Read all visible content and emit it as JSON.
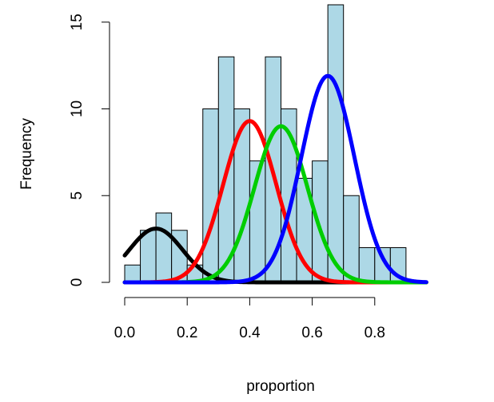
{
  "chart_data": {
    "type": "bar",
    "subtype": "histogram",
    "xlabel": "proportion",
    "ylabel": "Frequency",
    "xlim": [
      0.0,
      0.95
    ],
    "ylim": [
      0,
      16
    ],
    "x_ticks": [
      "0.0",
      "0.2",
      "0.4",
      "0.6",
      "0.8"
    ],
    "y_ticks": [
      "0",
      "5",
      "10",
      "15"
    ],
    "bin_width": 0.05,
    "bins": [
      {
        "start": 0.0,
        "end": 0.05,
        "count": 1
      },
      {
        "start": 0.05,
        "end": 0.1,
        "count": 3
      },
      {
        "start": 0.1,
        "end": 0.15,
        "count": 4
      },
      {
        "start": 0.15,
        "end": 0.2,
        "count": 3
      },
      {
        "start": 0.2,
        "end": 0.25,
        "count": 1
      },
      {
        "start": 0.25,
        "end": 0.3,
        "count": 10
      },
      {
        "start": 0.3,
        "end": 0.35,
        "count": 13
      },
      {
        "start": 0.35,
        "end": 0.4,
        "count": 10
      },
      {
        "start": 0.4,
        "end": 0.45,
        "count": 7
      },
      {
        "start": 0.45,
        "end": 0.5,
        "count": 13
      },
      {
        "start": 0.5,
        "end": 0.55,
        "count": 10
      },
      {
        "start": 0.55,
        "end": 0.6,
        "count": 6
      },
      {
        "start": 0.6,
        "end": 0.65,
        "count": 7
      },
      {
        "start": 0.65,
        "end": 0.7,
        "count": 16
      },
      {
        "start": 0.7,
        "end": 0.75,
        "count": 5
      },
      {
        "start": 0.75,
        "end": 0.8,
        "count": 2
      },
      {
        "start": 0.8,
        "end": 0.85,
        "count": 2
      },
      {
        "start": 0.85,
        "end": 0.9,
        "count": 2
      },
      {
        "start": 0.9,
        "end": 0.95,
        "count": 0
      }
    ],
    "bar_color": "#add8e6",
    "curves": [
      {
        "color": "#000000",
        "mean": 0.1,
        "peak": 3.1
      },
      {
        "color": "#ff0000",
        "mean": 0.4,
        "peak": 9.3
      },
      {
        "color": "#00cd00",
        "mean": 0.5,
        "peak": 9.0
      },
      {
        "color": "#0000ff",
        "mean": 0.65,
        "peak": 11.9
      }
    ]
  }
}
